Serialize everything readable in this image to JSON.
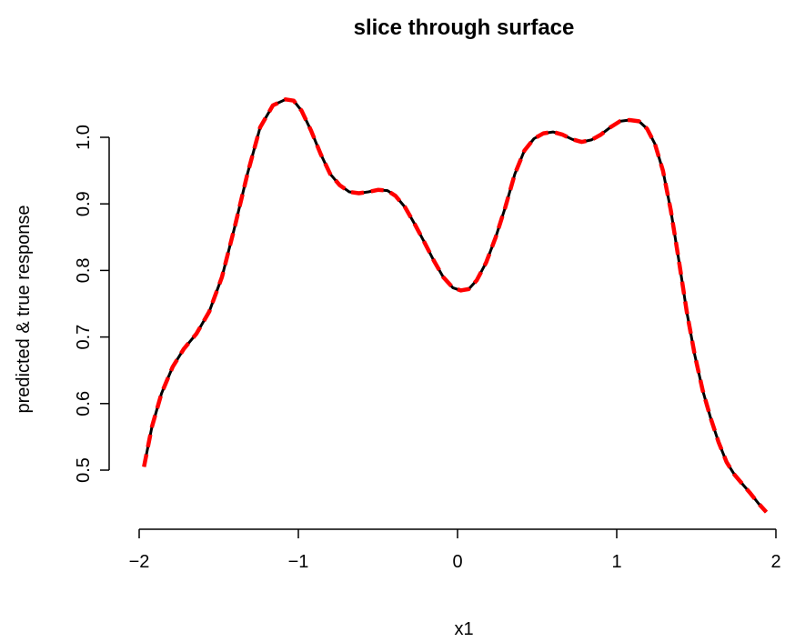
{
  "chart_data": {
    "type": "line",
    "title": "slice through surface",
    "xlabel": "x1",
    "ylabel": "predicted & true response",
    "xlim": [
      -2,
      2
    ],
    "ylim": [
      0.43,
      1.06
    ],
    "x_ticks": [
      -2,
      -1,
      0,
      1,
      2
    ],
    "x_tick_labels": [
      "−2",
      "−1",
      "0",
      "1",
      "2"
    ],
    "y_ticks": [
      0.5,
      0.6,
      0.7,
      0.8,
      0.9,
      1.0
    ],
    "y_tick_labels": [
      "0.5",
      "0.6",
      "0.7",
      "0.8",
      "0.9",
      "1.0"
    ],
    "grid": false,
    "series": [
      {
        "color": "#000000",
        "style": "solid",
        "x": [
          -1.97,
          -1.92,
          -1.86,
          -1.79,
          -1.72,
          -1.64,
          -1.56,
          -1.48,
          -1.4,
          -1.32,
          -1.24,
          -1.16,
          -1.08,
          -1.03,
          -0.98,
          -0.92,
          -0.86,
          -0.8,
          -0.74,
          -0.68,
          -0.62,
          -0.56,
          -0.5,
          -0.44,
          -0.39,
          -0.33,
          -0.27,
          -0.21,
          -0.15,
          -0.09,
          -0.03,
          0.02,
          0.07,
          0.12,
          0.18,
          0.24,
          0.3,
          0.36,
          0.42,
          0.48,
          0.54,
          0.6,
          0.66,
          0.72,
          0.78,
          0.84,
          0.9,
          0.96,
          1.02,
          1.08,
          1.14,
          1.19,
          1.24,
          1.29,
          1.34,
          1.39,
          1.44,
          1.49,
          1.54,
          1.59,
          1.64,
          1.69,
          1.74,
          1.79,
          1.84,
          1.89,
          1.94
        ],
        "y": [
          0.505,
          0.565,
          0.615,
          0.655,
          0.682,
          0.705,
          0.738,
          0.79,
          0.865,
          0.945,
          1.015,
          1.048,
          1.057,
          1.055,
          1.04,
          1.01,
          0.975,
          0.945,
          0.928,
          0.918,
          0.916,
          0.918,
          0.921,
          0.92,
          0.912,
          0.895,
          0.87,
          0.843,
          0.815,
          0.79,
          0.774,
          0.77,
          0.772,
          0.785,
          0.812,
          0.85,
          0.895,
          0.945,
          0.98,
          0.998,
          1.006,
          1.008,
          1.004,
          0.997,
          0.993,
          0.996,
          1.004,
          1.015,
          1.024,
          1.026,
          1.024,
          1.013,
          0.99,
          0.95,
          0.89,
          0.815,
          0.738,
          0.673,
          0.62,
          0.578,
          0.542,
          0.512,
          0.493,
          0.479,
          0.465,
          0.45,
          0.437
        ]
      },
      {
        "color": "#ff0000",
        "style": "dashed",
        "x": [
          -1.97,
          -1.92,
          -1.86,
          -1.79,
          -1.72,
          -1.64,
          -1.56,
          -1.48,
          -1.4,
          -1.32,
          -1.24,
          -1.16,
          -1.08,
          -1.03,
          -0.98,
          -0.92,
          -0.86,
          -0.8,
          -0.74,
          -0.68,
          -0.62,
          -0.56,
          -0.5,
          -0.44,
          -0.39,
          -0.33,
          -0.27,
          -0.21,
          -0.15,
          -0.09,
          -0.03,
          0.02,
          0.07,
          0.12,
          0.18,
          0.24,
          0.3,
          0.36,
          0.42,
          0.48,
          0.54,
          0.6,
          0.66,
          0.72,
          0.78,
          0.84,
          0.9,
          0.96,
          1.02,
          1.08,
          1.14,
          1.19,
          1.24,
          1.29,
          1.34,
          1.39,
          1.44,
          1.49,
          1.54,
          1.59,
          1.64,
          1.69,
          1.74,
          1.79,
          1.84,
          1.89,
          1.94
        ],
        "y": [
          0.505,
          0.565,
          0.615,
          0.655,
          0.682,
          0.705,
          0.738,
          0.79,
          0.865,
          0.945,
          1.015,
          1.048,
          1.057,
          1.055,
          1.04,
          1.01,
          0.975,
          0.945,
          0.928,
          0.918,
          0.916,
          0.918,
          0.921,
          0.92,
          0.912,
          0.895,
          0.87,
          0.843,
          0.815,
          0.79,
          0.774,
          0.77,
          0.772,
          0.785,
          0.812,
          0.85,
          0.895,
          0.945,
          0.98,
          0.998,
          1.006,
          1.008,
          1.004,
          0.997,
          0.993,
          0.996,
          1.004,
          1.015,
          1.024,
          1.026,
          1.024,
          1.013,
          0.99,
          0.95,
          0.89,
          0.815,
          0.738,
          0.673,
          0.62,
          0.578,
          0.542,
          0.512,
          0.493,
          0.479,
          0.465,
          0.45,
          0.437
        ]
      }
    ]
  }
}
